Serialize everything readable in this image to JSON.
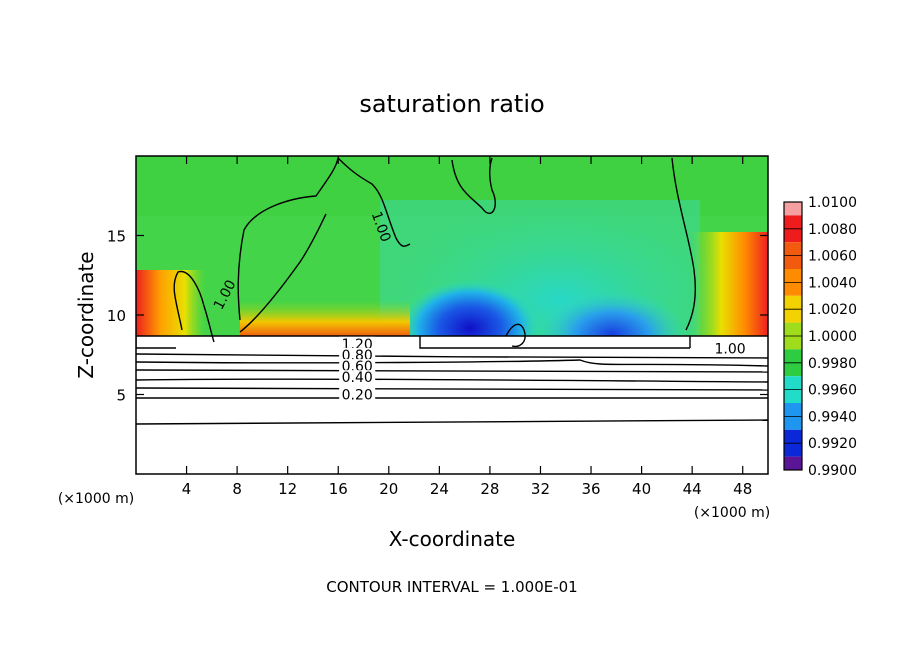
{
  "chart_data": {
    "type": "heatmap",
    "title": "saturation ratio",
    "xlabel": "X-coordinate",
    "ylabel": "Z-coordinate",
    "x_unit_left": "(×1000 m)",
    "x_unit_right": "(×1000 m)",
    "footer": "CONTOUR INTERVAL = 1.000E-01",
    "xlim": [
      0,
      50
    ],
    "ylim": [
      0,
      20
    ],
    "x_ticks": [
      4,
      8,
      12,
      16,
      20,
      24,
      28,
      32,
      36,
      40,
      44,
      48
    ],
    "y_ticks": [
      5,
      10,
      15
    ],
    "colorbar": {
      "labels": [
        "1.0100",
        "1.0080",
        "1.0060",
        "1.0040",
        "1.0020",
        "1.0000",
        "0.9980",
        "0.9960",
        "0.9940",
        "0.9920",
        "0.9900"
      ],
      "levels": [
        1.01,
        1.008,
        1.006,
        1.004,
        1.002,
        1.0,
        0.998,
        0.996,
        0.994,
        0.992,
        0.99
      ],
      "colors": [
        "#f4a0a0",
        "#ee1c1c",
        "#f25a10",
        "#ff8c00",
        "#f2d200",
        "#9fdc1c",
        "#2ecc40",
        "#20dcc8",
        "#1e96f0",
        "#0a28d8",
        "#5a1496"
      ]
    },
    "contour_labels": [
      {
        "text": "1.00",
        "x": 7.2,
        "z": 11.2
      },
      {
        "text": "1.00",
        "x": 19.2,
        "z": 15.5
      },
      {
        "text": "1.00",
        "x": 47.0,
        "z": 7.7
      },
      {
        "text": "1.20",
        "x": 17.5,
        "z": 8.0
      },
      {
        "text": "0.80",
        "x": 17.5,
        "z": 7.3
      },
      {
        "text": "0.60",
        "x": 17.5,
        "z": 6.6
      },
      {
        "text": "0.40",
        "x": 17.5,
        "z": 5.9
      },
      {
        "text": "0.20",
        "x": 17.5,
        "z": 4.8
      }
    ],
    "cloud_base_z": 8.8,
    "grid": false
  }
}
